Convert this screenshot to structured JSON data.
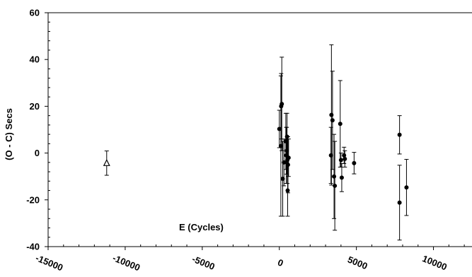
{
  "chart_data": {
    "type": "scatter",
    "title": "",
    "xlabel": "E (Cycles)",
    "ylabel": "(O - C) Secs",
    "xlim": [
      -15000,
      12500
    ],
    "ylim": [
      -40,
      60
    ],
    "x_ticks": [
      "-15000",
      "-10000",
      "-5000",
      "0",
      "5000",
      "10000"
    ],
    "y_ticks": [
      "60",
      "40",
      "20",
      "0",
      "-20",
      "-40"
    ],
    "grid": false,
    "legend": "none",
    "colors": {
      "marker": "#000000",
      "axis": "#000000"
    },
    "series": [
      {
        "marker": "triangle-open",
        "points": [
          {
            "x": -11200,
            "y": -4.3,
            "err": 5.2
          }
        ]
      },
      {
        "marker": "circle-filled",
        "points": [
          {
            "x": 0,
            "y": 10.3,
            "err": 8
          },
          {
            "x": 120,
            "y": 20.0,
            "err": 14
          },
          {
            "x": 160,
            "y": 21.0,
            "err": 20
          },
          {
            "x": 100,
            "y": 3.0,
            "err": 30
          },
          {
            "x": 220,
            "y": -11.0,
            "err": 16
          },
          {
            "x": 300,
            "y": -4.0,
            "err": 10
          },
          {
            "x": 420,
            "y": 5.0,
            "err": 12
          },
          {
            "x": 450,
            "y": -1.0,
            "err": 12
          },
          {
            "x": 480,
            "y": 1.0,
            "err": 10
          },
          {
            "x": 500,
            "y": 7.0,
            "err": 10
          },
          {
            "x": 520,
            "y": -3.0,
            "err": 10
          },
          {
            "x": 540,
            "y": -16.0,
            "err": 11
          },
          {
            "x": 560,
            "y": -5.0,
            "err": 12
          },
          {
            "x": 600,
            "y": -2.0,
            "err": 8
          },
          {
            "x": 3350,
            "y": -1.0,
            "err": 12
          },
          {
            "x": 3380,
            "y": 16.3,
            "err": 30
          },
          {
            "x": 3450,
            "y": 14.0,
            "err": 21
          },
          {
            "x": 3550,
            "y": -10.0,
            "err": 18
          },
          {
            "x": 3600,
            "y": -14.0,
            "err": 19
          },
          {
            "x": 3950,
            "y": 12.5,
            "err": 18.5
          },
          {
            "x": 4000,
            "y": -3.0,
            "err": 3
          },
          {
            "x": 4050,
            "y": -10.5,
            "err": 6
          },
          {
            "x": 4200,
            "y": -1.0,
            "err": 3.5
          },
          {
            "x": 4250,
            "y": -2.5,
            "err": 3.5
          },
          {
            "x": 4850,
            "y": -4.3,
            "err": 4.6
          },
          {
            "x": 7800,
            "y": 7.8,
            "err": 8.2
          },
          {
            "x": 7800,
            "y": -21.2,
            "err": 16
          },
          {
            "x": 8250,
            "y": -14.7,
            "err": 12
          }
        ]
      }
    ]
  }
}
